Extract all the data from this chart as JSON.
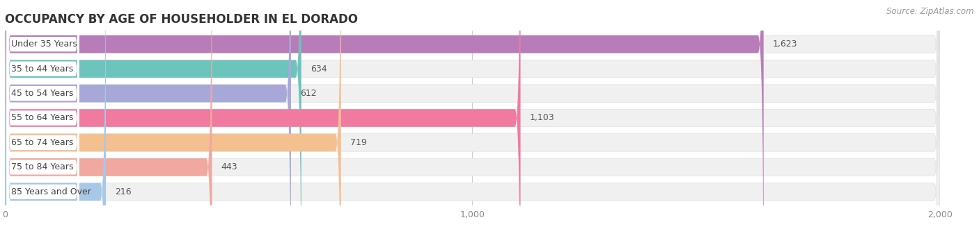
{
  "title": "OCCUPANCY BY AGE OF HOUSEHOLDER IN EL DORADO",
  "source": "Source: ZipAtlas.com",
  "categories": [
    "Under 35 Years",
    "35 to 44 Years",
    "45 to 54 Years",
    "55 to 64 Years",
    "65 to 74 Years",
    "75 to 84 Years",
    "85 Years and Over"
  ],
  "values": [
    1623,
    634,
    612,
    1103,
    719,
    443,
    216
  ],
  "bar_colors": [
    "#b87db8",
    "#6cc4bc",
    "#a8a8d8",
    "#f07aa0",
    "#f5c090",
    "#f0a8a0",
    "#a8c8e8"
  ],
  "bar_bg_color": "#f0f0f0",
  "bar_border_color": "#e0e0e0",
  "xlim": [
    0,
    2000
  ],
  "xticks": [
    0,
    1000,
    2000
  ],
  "title_fontsize": 12,
  "label_fontsize": 9,
  "value_fontsize": 9,
  "source_fontsize": 8.5,
  "figsize": [
    14.06,
    3.4
  ],
  "dpi": 100
}
